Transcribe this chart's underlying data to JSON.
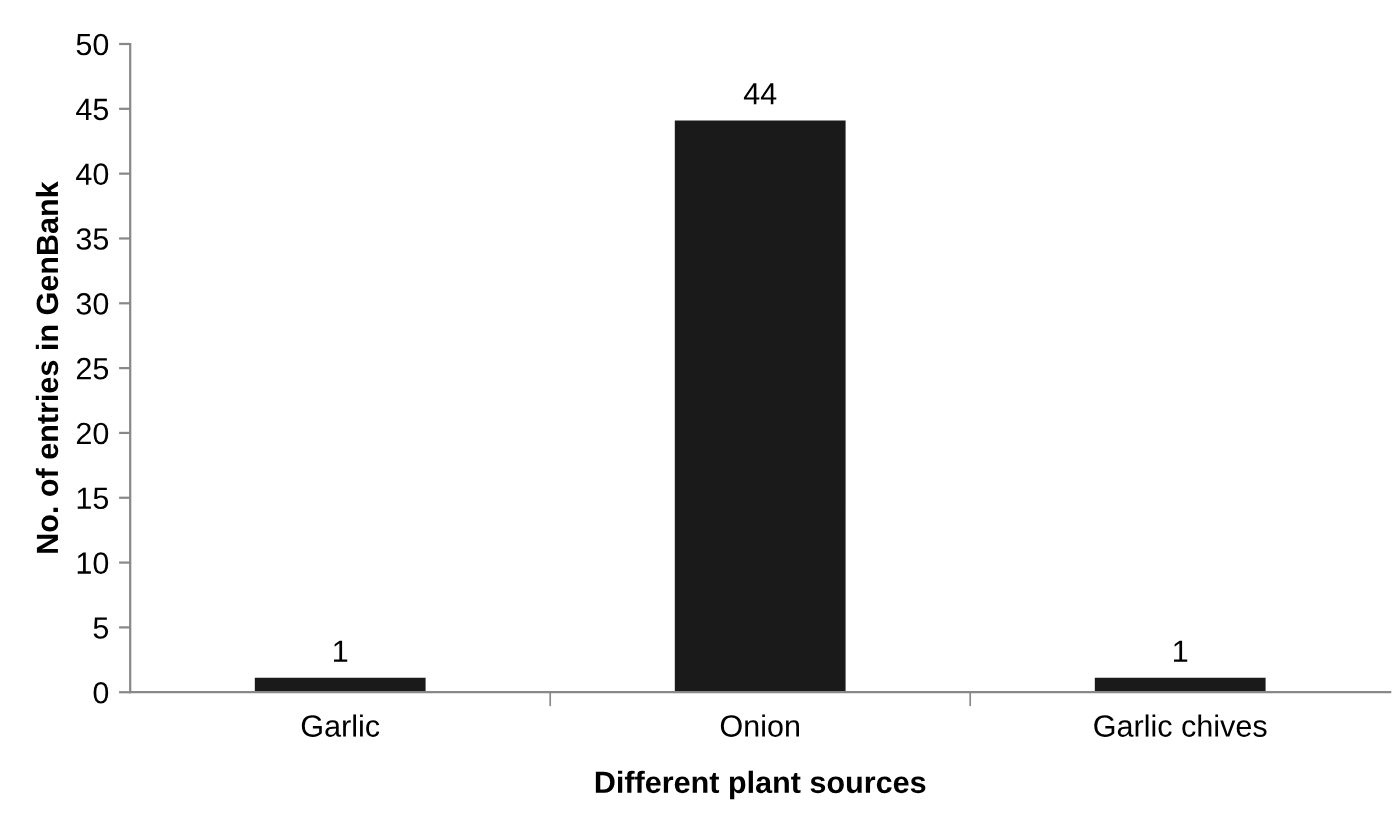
{
  "chart_data": {
    "type": "bar",
    "categories": [
      "Garlic",
      "Onion",
      "Garlic chives"
    ],
    "values": [
      1,
      44,
      1
    ],
    "color": "#1a1a1a",
    "xlabel": "Different plant sources",
    "ylabel": "No. of entries in GenBank",
    "ylim": [
      0,
      50
    ],
    "yticks": [
      0,
      5,
      10,
      15,
      20,
      25,
      30,
      35,
      40,
      45,
      50
    ],
    "data_labels": true,
    "grid": false
  }
}
